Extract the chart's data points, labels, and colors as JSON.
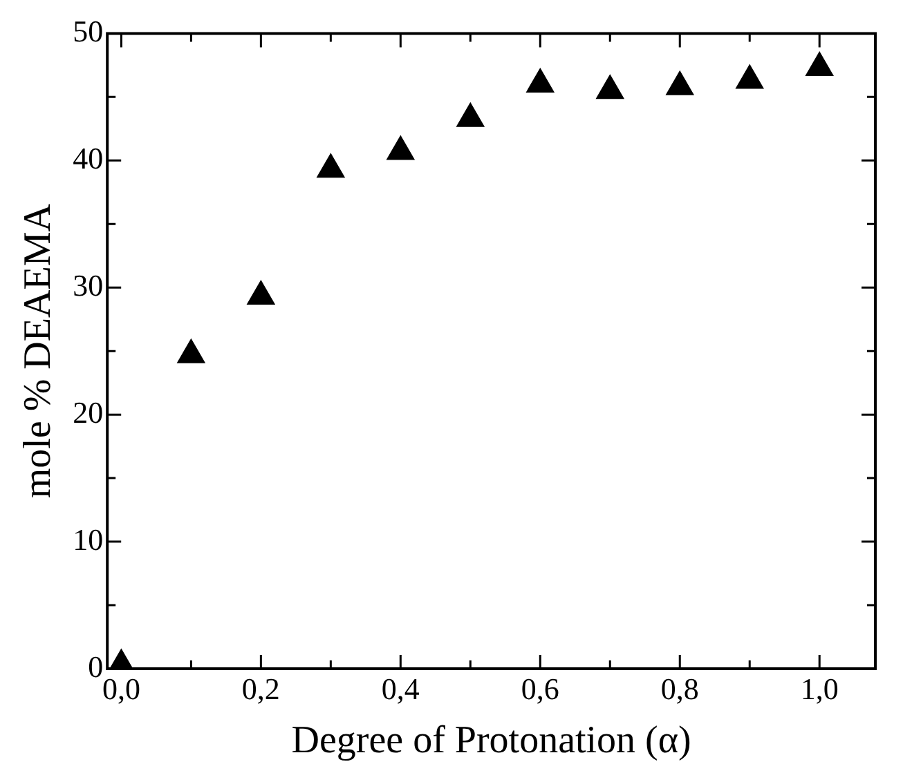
{
  "chart_data": {
    "type": "scatter",
    "xlabel": "Degree of Protonation (α)",
    "ylabel": "mole % DEAEMA",
    "x": [
      0,
      0.1,
      0.2,
      0.3,
      0.4,
      0.5,
      0.6,
      0.7,
      0.8,
      0.9,
      1.0
    ],
    "series": [
      {
        "color": "#000000",
        "values": [
          0.3,
          24.7,
          29.3,
          39.3,
          40.7,
          43.3,
          46.0,
          45.5,
          45.8,
          46.3,
          47.3
        ]
      }
    ],
    "marker": "triangle",
    "grid": false,
    "legend": false,
    "xlim": [
      -0.02,
      1.08
    ],
    "xticks": [
      {
        "value": 0,
        "label": "0,0"
      },
      {
        "value": 0.1,
        "label": null
      },
      {
        "value": 0.2,
        "label": "0,2"
      },
      {
        "value": 0.3,
        "label": null
      },
      {
        "value": 0.4,
        "label": "0,4"
      },
      {
        "value": 0.5,
        "label": null
      },
      {
        "value": 0.6,
        "label": "0,6"
      },
      {
        "value": 0.7,
        "label": null
      },
      {
        "value": 0.8,
        "label": "0,8"
      },
      {
        "value": 0.9,
        "label": null
      },
      {
        "value": 1.0,
        "label": "1,0"
      }
    ],
    "ylim": [
      0,
      50
    ],
    "yticks": [
      0,
      {
        "value": 5,
        "label": null
      },
      10,
      {
        "value": 15,
        "label": null
      },
      20,
      {
        "value": 25,
        "label": null
      },
      30,
      {
        "value": 35,
        "label": null
      },
      40,
      {
        "value": 45,
        "label": null
      },
      50
    ]
  }
}
